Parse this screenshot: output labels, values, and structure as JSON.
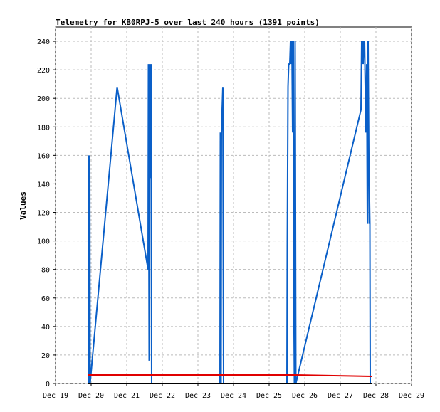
{
  "chart_data": {
    "type": "line",
    "title": "Telemetry for KB0RPJ-5 over last 240 hours (1391 points)",
    "xlabel": "",
    "ylabel": "Values",
    "x_ticks": [
      "Dec 19",
      "Dec 20",
      "Dec 21",
      "Dec 22",
      "Dec 23",
      "Dec 24",
      "Dec 25",
      "Dec 26",
      "Dec 27",
      "Dec 28",
      "Dec 29"
    ],
    "y_ticks": [
      0,
      20,
      40,
      60,
      80,
      100,
      120,
      140,
      160,
      180,
      200,
      220,
      240
    ],
    "xlim_days": [
      0,
      10
    ],
    "ylim": [
      0,
      250
    ],
    "grid": "dashed-both",
    "legend": "none",
    "series": [
      {
        "color": "#0a5fc8",
        "points": [
          [
            0.93,
            0
          ],
          [
            0.94,
            160
          ],
          [
            0.95,
            0
          ],
          [
            0.96,
            160
          ],
          [
            0.97,
            0
          ],
          [
            1.73,
            208
          ],
          [
            2.6,
            80
          ],
          [
            2.61,
            224
          ],
          [
            2.63,
            16
          ],
          [
            2.64,
            224
          ],
          [
            2.66,
            144
          ],
          [
            2.68,
            224
          ],
          [
            2.7,
            0
          ],
          [
            4.62,
            0
          ],
          [
            4.63,
            176
          ],
          [
            4.65,
            0
          ],
          [
            4.66,
            176
          ],
          [
            4.68,
            192
          ],
          [
            4.7,
            208
          ],
          [
            4.72,
            0
          ],
          [
            6.5,
            0
          ],
          [
            6.51,
            96
          ],
          [
            6.53,
            208
          ],
          [
            6.55,
            224
          ],
          [
            6.58,
            224
          ],
          [
            6.6,
            240
          ],
          [
            6.62,
            224
          ],
          [
            6.64,
            240
          ],
          [
            6.66,
            176
          ],
          [
            6.68,
            240
          ],
          [
            6.69,
            72
          ],
          [
            6.71,
            0
          ],
          [
            6.73,
            240
          ],
          [
            6.75,
            0
          ],
          [
            8.58,
            192
          ],
          [
            8.6,
            240
          ],
          [
            8.62,
            240
          ],
          [
            8.64,
            224
          ],
          [
            8.66,
            240
          ],
          [
            8.68,
            240
          ],
          [
            8.72,
            176
          ],
          [
            8.74,
            224
          ],
          [
            8.76,
            112
          ],
          [
            8.78,
            240
          ],
          [
            8.8,
            160
          ],
          [
            8.81,
            112
          ],
          [
            8.82,
            128
          ],
          [
            8.83,
            112
          ],
          [
            8.84,
            0
          ]
        ]
      },
      {
        "color": "#e00000",
        "points": [
          [
            0.9,
            6
          ],
          [
            6.75,
            6
          ],
          [
            8.9,
            5
          ]
        ]
      },
      {
        "color": "#000000",
        "points": [
          [
            0.9,
            0
          ],
          [
            8.9,
            0
          ]
        ]
      }
    ]
  }
}
